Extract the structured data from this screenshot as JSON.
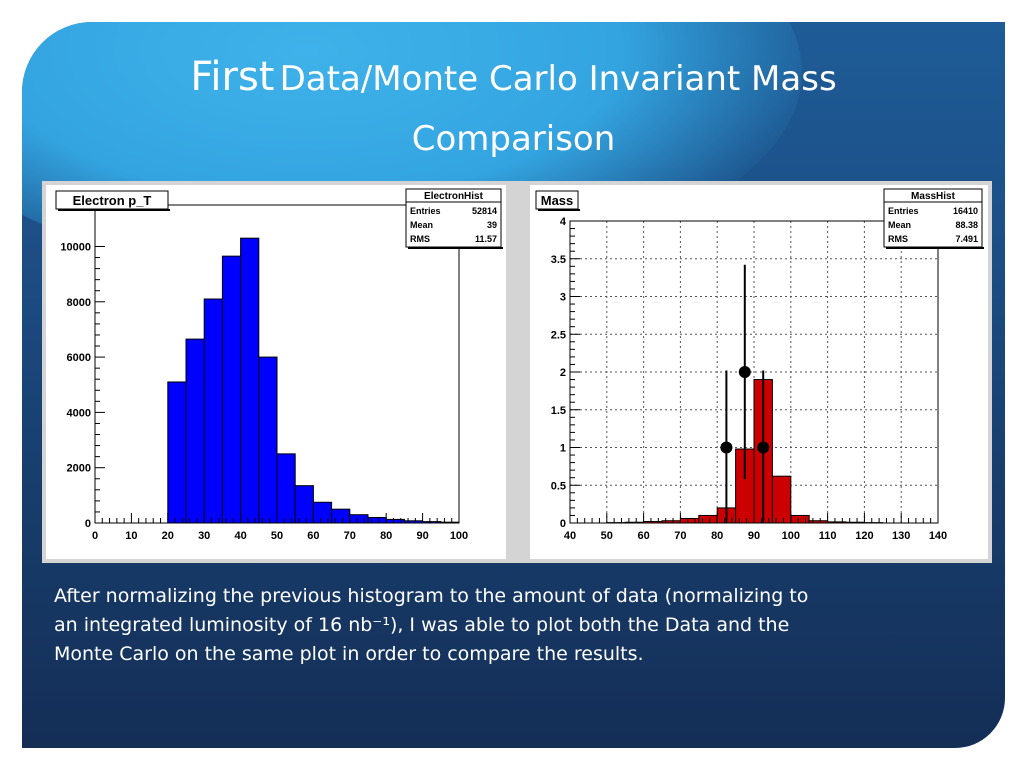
{
  "slide": {
    "title_big": "First",
    "title_rest_line1": "Data/Monte Carlo Invariant Mass",
    "title_line2": "Comparison",
    "caption_lines": [
      "After normalizing the previous histogram to the amount of data (normalizing to",
      "an integrated luminosity of 16 nb⁻¹), I was able to plot both the Data and the",
      "Monte Carlo on the same plot in order to compare the results."
    ]
  },
  "chart_data": [
    {
      "type": "bar",
      "title": "Electron p_T",
      "stats": {
        "name": "ElectronHist",
        "rows": [
          [
            "Entries",
            "52814"
          ],
          [
            "Mean",
            "39"
          ],
          [
            "RMS",
            "11.57"
          ]
        ]
      },
      "bin_edges": [
        0,
        5,
        10,
        15,
        20,
        25,
        30,
        35,
        40,
        45,
        50,
        55,
        60,
        65,
        70,
        75,
        80,
        85,
        90,
        95,
        100
      ],
      "values": [
        0,
        0,
        0,
        0,
        5100,
        6650,
        8100,
        9650,
        10300,
        6000,
        2500,
        1350,
        750,
        500,
        300,
        200,
        130,
        80,
        50,
        30
      ],
      "xlim": [
        0,
        100
      ],
      "ylim": [
        0,
        11500
      ],
      "xticks": [
        0,
        10,
        20,
        30,
        40,
        50,
        60,
        70,
        80,
        90,
        100
      ],
      "yticks": [
        0,
        2000,
        4000,
        6000,
        8000,
        10000
      ],
      "color": "#0000ff",
      "grid": false
    },
    {
      "type": "bar",
      "title": "Mass",
      "stats": {
        "name": "MassHist",
        "rows": [
          [
            "Entries",
            "16410"
          ],
          [
            "Mean",
            "88.38"
          ],
          [
            "RMS",
            "7.491"
          ]
        ]
      },
      "bin_edges": [
        40,
        45,
        50,
        55,
        60,
        65,
        70,
        75,
        80,
        85,
        90,
        95,
        100,
        105,
        110,
        115,
        120,
        125,
        130,
        135,
        140
      ],
      "values": [
        0,
        0,
        0.005,
        0.01,
        0.02,
        0.03,
        0.06,
        0.1,
        0.2,
        0.98,
        1.9,
        0.62,
        0.1,
        0.03,
        0.015,
        0.01,
        0.005,
        0,
        0,
        0
      ],
      "xlim": [
        40,
        140
      ],
      "ylim": [
        0,
        4
      ],
      "xticks": [
        40,
        50,
        60,
        70,
        80,
        90,
        100,
        110,
        120,
        130,
        140
      ],
      "yticks": [
        0,
        0.5,
        1,
        1.5,
        2,
        2.5,
        3,
        3.5,
        4
      ],
      "color": "#cc0000",
      "grid": true,
      "data_points": [
        {
          "x": 82.5,
          "y": 1,
          "yerr": 1.02
        },
        {
          "x": 87.5,
          "y": 2,
          "yerr": 1.42
        },
        {
          "x": 92.5,
          "y": 1,
          "yerr": 1.02
        }
      ]
    }
  ]
}
